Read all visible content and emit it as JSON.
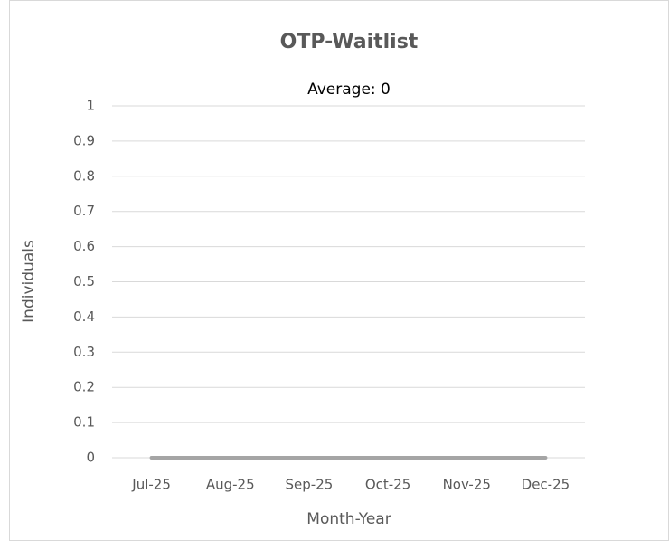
{
  "chart_data": {
    "type": "line",
    "title": "OTP-Waitlist",
    "subtitle": "Average: 0",
    "x_label": "Month-Year",
    "y_label": "Individuals",
    "categories": [
      "Jul-25",
      "Aug-25",
      "Sep-25",
      "Oct-25",
      "Nov-25",
      "Dec-25"
    ],
    "series": [
      {
        "name": "OTP-Waitlist",
        "color": "#a5a5a5",
        "values": [
          0,
          0,
          0,
          0,
          0,
          0
        ]
      }
    ],
    "ylim": [
      0,
      1
    ],
    "yticks": [
      0,
      0.1,
      0.2,
      0.3,
      0.4,
      0.5,
      0.6,
      0.7,
      0.8,
      0.9,
      1
    ],
    "grid": true
  }
}
